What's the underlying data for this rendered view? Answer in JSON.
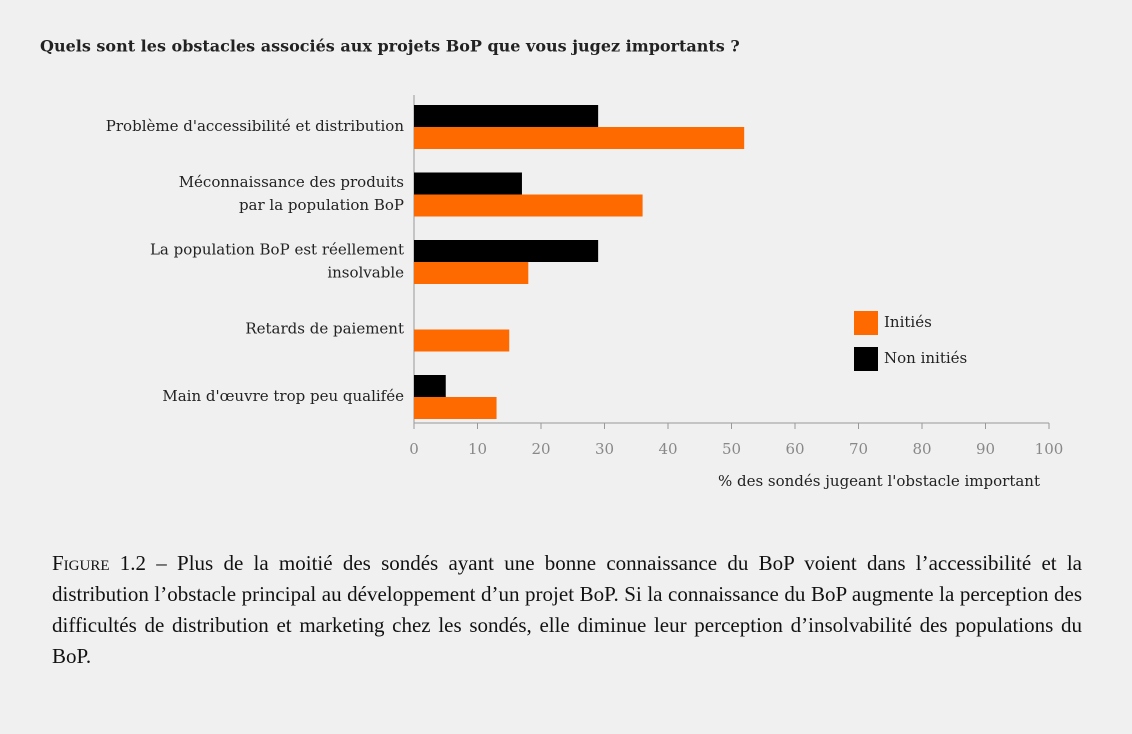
{
  "chart_data": {
    "type": "bar",
    "orientation": "horizontal",
    "title": "Quels sont les obstacles associés aux projets BoP que vous jugez importants ?",
    "categories": [
      [
        "Problème d'accessibilité et distribution"
      ],
      [
        "Méconnaissance des produits",
        "par la population BoP"
      ],
      [
        "La population BoP est réellement",
        "insolvable"
      ],
      [
        "Retards de paiement"
      ],
      [
        "Main d'œuvre trop peu qualifée"
      ]
    ],
    "series": [
      {
        "name": "Initiés",
        "color": "#ff6a00",
        "values": [
          52,
          36,
          18,
          15,
          13
        ]
      },
      {
        "name": "Non initiés",
        "color": "#000000",
        "values": [
          29,
          17,
          29,
          0,
          5
        ]
      }
    ],
    "xlim": [
      0,
      100
    ],
    "xticks": [
      0,
      10,
      20,
      30,
      40,
      50,
      60,
      70,
      80,
      90,
      100
    ],
    "xlabel": "% des sondés jugeant l'obstacle important",
    "legend": "right"
  },
  "caption": {
    "label": "Figure 1.2",
    "text": "– Plus de la moitié des sondés ayant une bonne connaissance du BoP voient dans l’accessibilité et la distribution l’obstacle principal au développement d’un projet BoP. Si la connaissance du BoP augmente la perception des difficultés de distribution et marketing chez les sondés, elle diminue leur perception d’insolvabilité des populations du BoP."
  }
}
